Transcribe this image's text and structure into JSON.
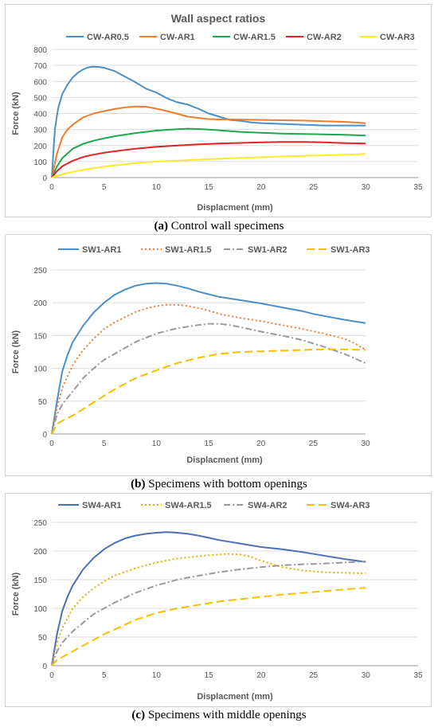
{
  "chart_data": [
    {
      "type": "line",
      "title": "Wall aspect ratios",
      "xlabel": "Displacment (mm)",
      "ylabel": "Force (kN)",
      "xlim": [
        0,
        35
      ],
      "ylim": [
        0,
        800
      ],
      "xticks": [
        0,
        5,
        10,
        15,
        20,
        25,
        30,
        35
      ],
      "yticks": [
        0,
        100,
        200,
        300,
        400,
        500,
        600,
        700,
        800
      ],
      "grid": "horizontal",
      "legend_position": "top",
      "caption_letter": "(a)",
      "caption_text": " Control wall specimens",
      "series": [
        {
          "name": "CW-AR0.5",
          "color": "#4a8fc5",
          "dash": "solid",
          "x": [
            0,
            0.3,
            0.6,
            1,
            1.5,
            2,
            2.5,
            3,
            3.5,
            4,
            4.5,
            5,
            5.5,
            6,
            7,
            8,
            9,
            10,
            11,
            12,
            13,
            14,
            15,
            16,
            17,
            18,
            19,
            20,
            22,
            24,
            26,
            28,
            30
          ],
          "y": [
            0,
            300,
            430,
            520,
            580,
            625,
            655,
            675,
            688,
            692,
            690,
            685,
            675,
            665,
            630,
            595,
            555,
            530,
            495,
            470,
            455,
            430,
            400,
            380,
            360,
            355,
            345,
            340,
            335,
            330,
            325,
            325,
            325
          ]
        },
        {
          "name": "CW-AR1",
          "color": "#ee7d31",
          "dash": "solid",
          "x": [
            0,
            0.5,
            1,
            1.5,
            2,
            3,
            4,
            5,
            6,
            7,
            8,
            9,
            10,
            11,
            12,
            13,
            14,
            15,
            16,
            18,
            20,
            22,
            24,
            26,
            28,
            30
          ],
          "y": [
            0,
            150,
            250,
            300,
            330,
            375,
            400,
            415,
            428,
            438,
            443,
            442,
            430,
            415,
            398,
            380,
            372,
            365,
            363,
            362,
            360,
            358,
            356,
            352,
            348,
            340
          ]
        },
        {
          "name": "CW-AR1.5",
          "color": "#1fa84d",
          "dash": "solid",
          "x": [
            0,
            0.5,
            1,
            2,
            3,
            4,
            5,
            6,
            8,
            10,
            12,
            13,
            14,
            16,
            18,
            20,
            22,
            24,
            26,
            28,
            30
          ],
          "y": [
            0,
            70,
            120,
            180,
            210,
            230,
            245,
            258,
            278,
            293,
            302,
            305,
            303,
            295,
            285,
            280,
            275,
            272,
            270,
            267,
            262
          ]
        },
        {
          "name": "CW-AR2",
          "color": "#e32222",
          "dash": "solid",
          "x": [
            0,
            0.5,
            1,
            2,
            3,
            4,
            5,
            6,
            8,
            10,
            12,
            14,
            16,
            18,
            20,
            22,
            24,
            26,
            28,
            30
          ],
          "y": [
            0,
            40,
            70,
            105,
            128,
            143,
            155,
            164,
            180,
            192,
            200,
            207,
            212,
            216,
            220,
            222,
            222,
            220,
            215,
            212
          ]
        },
        {
          "name": "CW-AR3",
          "color": "#fbe82d",
          "dash": "solid",
          "x": [
            0,
            1,
            2,
            3,
            4,
            5,
            6,
            8,
            10,
            12,
            15,
            18,
            20,
            22,
            25,
            28,
            30
          ],
          "y": [
            0,
            20,
            35,
            48,
            58,
            68,
            76,
            90,
            100,
            106,
            115,
            122,
            127,
            132,
            137,
            142,
            148
          ]
        }
      ]
    },
    {
      "type": "line",
      "title": "",
      "xlabel": "Displacment (mm)",
      "ylabel": "Force (kN)",
      "xlim": [
        0,
        30
      ],
      "ylim": [
        0,
        250
      ],
      "xticks": [
        0,
        5,
        10,
        15,
        20,
        25,
        30
      ],
      "yticks": [
        0,
        50,
        100,
        150,
        200,
        250
      ],
      "grid": "horizontal",
      "legend_position": "top",
      "caption_letter": "(b)",
      "caption_text": " Specimens with bottom openings",
      "series": [
        {
          "name": "SW1-AR1",
          "color": "#4a8fc5",
          "dash": "solid",
          "x": [
            0,
            0.5,
            1,
            1.5,
            2,
            3,
            4,
            5,
            6,
            7,
            8,
            9,
            10,
            11,
            12,
            13,
            14,
            15,
            16,
            18,
            20,
            22,
            24,
            25,
            26,
            28,
            30
          ],
          "y": [
            0,
            50,
            95,
            120,
            140,
            165,
            185,
            200,
            212,
            220,
            226,
            229,
            230,
            229,
            226,
            222,
            217,
            213,
            209,
            204,
            199,
            193,
            187,
            183,
            180,
            174,
            169
          ]
        },
        {
          "name": "SW1-AR1.5",
          "color": "#ee7d31",
          "dash": "2,3",
          "x": [
            0,
            0.5,
            1,
            2,
            3,
            4,
            5,
            6,
            7,
            8,
            9,
            10,
            11,
            12,
            13,
            14,
            15,
            16,
            18,
            20,
            22,
            24,
            26,
            28,
            29,
            30
          ],
          "y": [
            0,
            40,
            70,
            105,
            128,
            145,
            160,
            170,
            178,
            186,
            191,
            195,
            197,
            197,
            195,
            192,
            188,
            183,
            177,
            172,
            166,
            160,
            153,
            145,
            138,
            128
          ]
        },
        {
          "name": "SW1-AR2",
          "color": "#9a9a9a",
          "dash": "8,3,2,3",
          "x": [
            0,
            0.5,
            1,
            2,
            3,
            4,
            5,
            6,
            8,
            10,
            12,
            14,
            15,
            16,
            17,
            18,
            20,
            22,
            24,
            26,
            28,
            30
          ],
          "y": [
            0,
            30,
            45,
            65,
            85,
            100,
            113,
            122,
            140,
            153,
            161,
            166,
            168,
            168,
            166,
            163,
            156,
            150,
            143,
            133,
            122,
            108
          ]
        },
        {
          "name": "SW1-AR3",
          "color": "#f5c000",
          "dash": "10,5",
          "x": [
            0,
            0.5,
            1,
            2,
            3,
            4,
            5,
            6,
            8,
            10,
            12,
            14,
            16,
            18,
            20,
            22,
            24,
            26,
            28,
            30
          ],
          "y": [
            0,
            15,
            20,
            28,
            38,
            48,
            58,
            68,
            85,
            97,
            108,
            116,
            122,
            125,
            126,
            127,
            128,
            129,
            129,
            128
          ]
        }
      ]
    },
    {
      "type": "line",
      "title": "",
      "xlabel": "Displacment (mm)",
      "ylabel": "Force (kN)",
      "xlim": [
        0,
        35
      ],
      "ylim": [
        0,
        250
      ],
      "xticks": [
        0,
        5,
        10,
        15,
        20,
        25,
        30,
        35
      ],
      "yticks": [
        0,
        50,
        100,
        150,
        200,
        250
      ],
      "grid": "horizontal",
      "legend_position": "top",
      "caption_letter": "(c)",
      "caption_text": " Specimens with middle openings",
      "series": [
        {
          "name": "SW4-AR1",
          "color": "#4a70b8",
          "dash": "solid",
          "x": [
            0,
            0.5,
            1,
            1.5,
            2,
            3,
            4,
            5,
            6,
            7,
            8,
            9,
            10,
            11,
            12,
            13,
            14,
            15,
            16,
            18,
            20,
            22,
            24,
            26,
            28,
            30
          ],
          "y": [
            0,
            55,
            95,
            120,
            140,
            168,
            188,
            203,
            214,
            222,
            227,
            230,
            232,
            233,
            232,
            230,
            227,
            223,
            219,
            213,
            207,
            203,
            198,
            192,
            186,
            181
          ]
        },
        {
          "name": "SW4-AR1.5",
          "color": "#e0b000",
          "dash": "2,3",
          "x": [
            0,
            0.5,
            1,
            2,
            3,
            4,
            5,
            6,
            8,
            10,
            12,
            14,
            16,
            17,
            18,
            19,
            20,
            22,
            24,
            26,
            28,
            30
          ],
          "y": [
            0,
            40,
            65,
            100,
            120,
            135,
            147,
            157,
            170,
            180,
            187,
            191,
            194,
            195,
            194,
            190,
            183,
            172,
            166,
            163,
            162,
            161
          ]
        },
        {
          "name": "SW4-AR2",
          "color": "#9a9a9a",
          "dash": "8,3,2,3",
          "x": [
            0,
            0.5,
            1,
            2,
            3,
            4,
            5,
            6,
            8,
            10,
            12,
            14,
            16,
            18,
            20,
            22,
            24,
            26,
            28,
            30
          ],
          "y": [
            0,
            25,
            40,
            60,
            75,
            90,
            100,
            110,
            127,
            140,
            150,
            157,
            163,
            168,
            172,
            175,
            177,
            178,
            180,
            182
          ]
        },
        {
          "name": "SW4-AR3",
          "color": "#f5c000",
          "dash": "10,5",
          "x": [
            0,
            0.5,
            1,
            2,
            3,
            4,
            5,
            6,
            8,
            10,
            12,
            14,
            16,
            18,
            20,
            22,
            24,
            26,
            28,
            30
          ],
          "y": [
            0,
            10,
            15,
            25,
            35,
            45,
            55,
            63,
            80,
            92,
            100,
            106,
            112,
            116,
            120,
            124,
            127,
            130,
            133,
            136
          ]
        }
      ]
    }
  ]
}
